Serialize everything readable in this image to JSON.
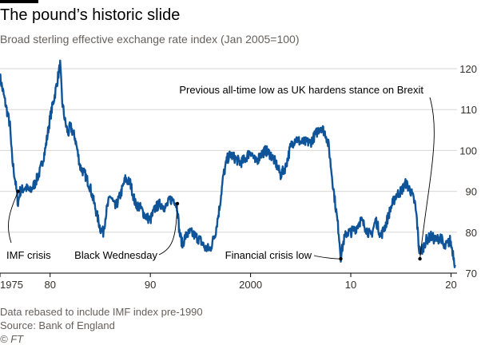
{
  "header": {
    "title": "The pound’s historic slide",
    "subtitle": "Broad sterling effective exchange rate index (Jan 2005=100)"
  },
  "footer": {
    "note": "Data rebased to include IMF index pre-1990",
    "source": "Source: Bank of England",
    "credit": "© FT"
  },
  "colors": {
    "series": "#0f5499",
    "grid": "#d9d6d2",
    "axis": "#000000",
    "text": "#33302e"
  },
  "chart_data": {
    "type": "line",
    "xlim": [
      1975,
      2020.6
    ],
    "ylim": [
      70,
      120
    ],
    "grid": true,
    "y_ticks": [
      70,
      80,
      90,
      100,
      110,
      120
    ],
    "y_tick_labels": [
      "70",
      "80",
      "90",
      "100",
      "110",
      "120"
    ],
    "x_ticks": [
      1975,
      1980,
      1990,
      2000,
      2010,
      2020
    ],
    "x_tick_labels": [
      "1975",
      "80",
      "90",
      "2000",
      "10",
      "20"
    ],
    "series": [
      {
        "x": [
          1975.0,
          1975.5,
          1976.0,
          1976.2,
          1976.5,
          1976.8,
          1977.0,
          1977.5,
          1978.0,
          1978.5,
          1979.0,
          1979.5,
          1980.0,
          1980.5,
          1981.0,
          1981.2,
          1981.5,
          1981.8,
          1982.0,
          1982.5,
          1983.0,
          1983.5,
          1984.0,
          1984.5,
          1985.0,
          1985.3,
          1985.6,
          1986.0,
          1986.5,
          1987.0,
          1987.5,
          1988.0,
          1988.5,
          1989.0,
          1989.5,
          1990.0,
          1990.5,
          1991.0,
          1991.5,
          1992.0,
          1992.4,
          1992.7,
          1992.9,
          1993.2,
          1993.5,
          1994.0,
          1994.5,
          1995.0,
          1995.5,
          1996.0,
          1996.5,
          1996.9,
          1997.3,
          1997.7,
          1998.0,
          1998.5,
          1999.0,
          1999.5,
          2000.0,
          2000.5,
          2001.0,
          2001.5,
          2002.0,
          2002.5,
          2003.0,
          2003.5,
          2004.0,
          2004.5,
          2005.0,
          2005.5,
          2006.0,
          2006.5,
          2007.0,
          2007.5,
          2007.8,
          2008.2,
          2008.5,
          2008.8,
          2009.0,
          2009.3,
          2009.6,
          2010.0,
          2010.5,
          2011.0,
          2011.5,
          2012.0,
          2012.5,
          2013.0,
          2013.5,
          2014.0,
          2014.5,
          2015.0,
          2015.5,
          2016.0,
          2016.4,
          2016.6,
          2016.8,
          2017.0,
          2017.5,
          2018.0,
          2018.5,
          2019.0,
          2019.3,
          2019.6,
          2019.9,
          2020.2,
          2020.4
        ],
        "y": [
          118,
          112,
          106,
          98,
          93,
          87,
          90,
          91,
          90,
          92,
          95,
          100,
          108,
          114,
          121,
          112,
          107,
          104,
          106,
          103,
          96,
          94,
          91,
          86,
          81,
          80,
          85,
          89,
          86,
          89,
          93,
          92,
          87,
          86,
          84,
          83,
          86,
          87,
          86,
          88,
          88,
          86,
          80,
          77,
          79,
          80,
          79,
          78,
          76,
          76,
          80,
          86,
          94,
          98,
          99,
          98,
          97,
          98,
          100,
          97,
          99,
          100,
          99,
          97,
          94,
          96,
          101,
          103,
          102,
          102,
          102,
          104,
          106,
          104,
          101,
          92,
          86,
          80,
          74,
          78,
          80,
          80,
          81,
          83,
          81,
          79,
          83,
          79,
          82,
          86,
          89,
          90,
          92,
          90,
          87,
          83,
          76,
          75,
          78,
          79,
          78,
          79,
          76,
          77,
          78,
          75,
          72
        ]
      }
    ],
    "annotations": [
      {
        "text": "IMF crisis",
        "x": 1976.8,
        "y": 90
      },
      {
        "text": "Black Wednesday",
        "x": 1992.7,
        "y": 87
      },
      {
        "text": "Financial crisis low",
        "x": 2009.0,
        "y": 73.5
      },
      {
        "text": "Previous all-time low as UK hardens stance on Brexit",
        "x": 2016.9,
        "y": 73.5
      }
    ]
  }
}
